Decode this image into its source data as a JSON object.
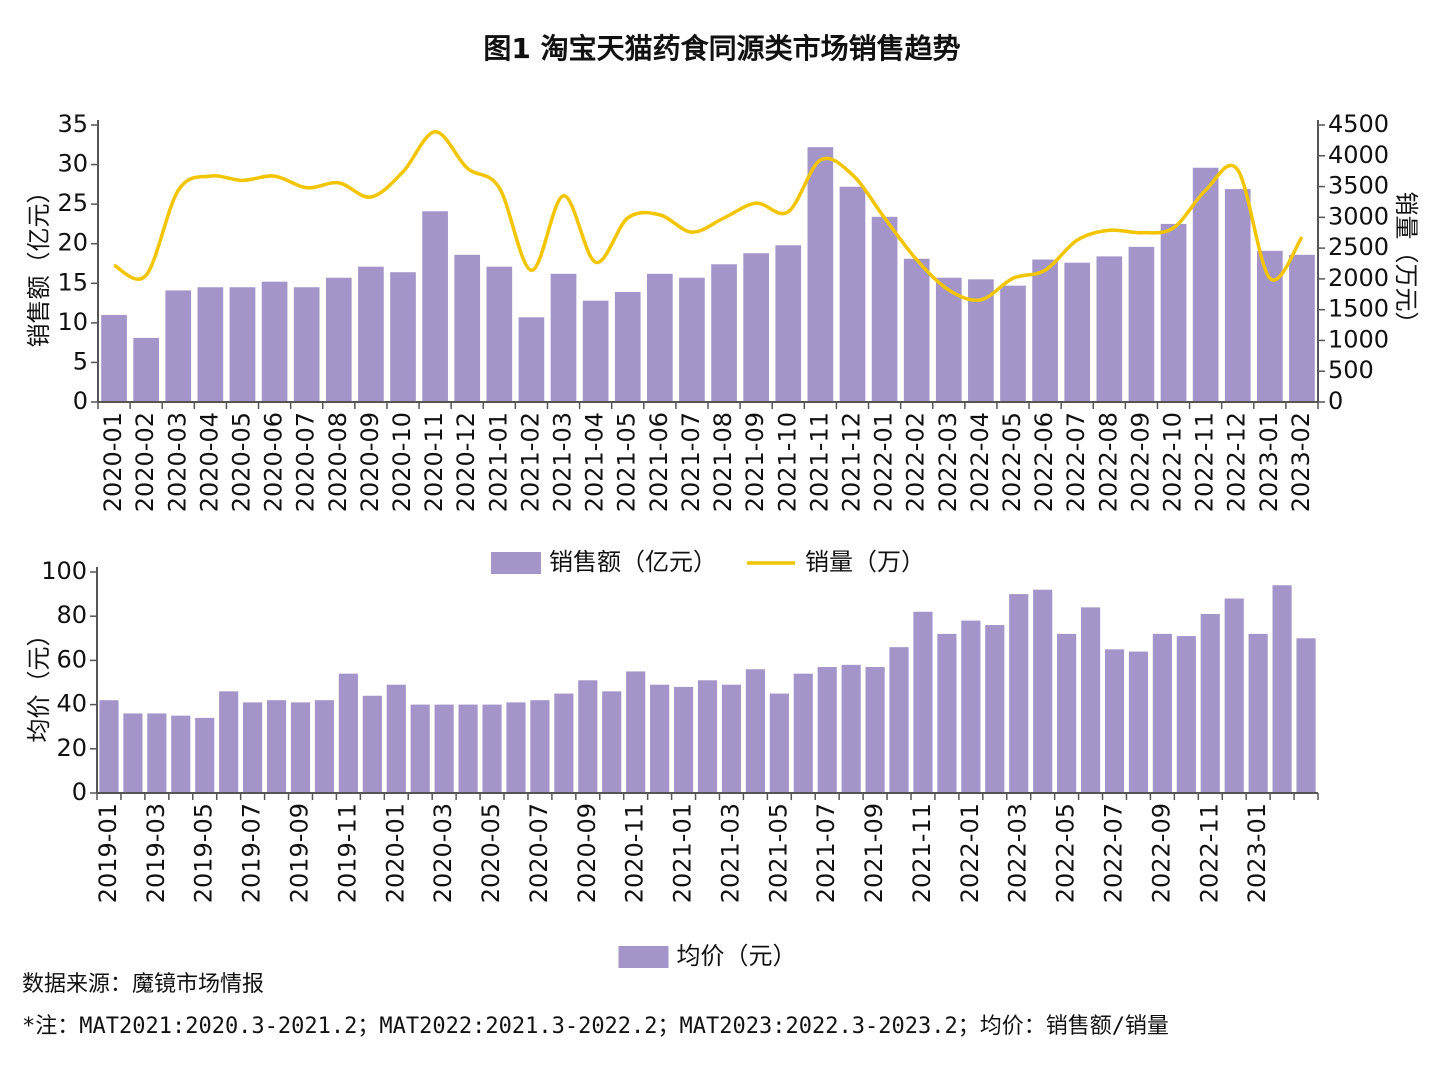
{
  "chart_data": [
    {
      "type": "bar",
      "title": "图1 淘宝天猫药食同源类市场销售趋势",
      "y_label": "销售额（亿元）",
      "y2_label": "销量（万元）",
      "categories": [
        "2020-01",
        "2020-02",
        "2020-03",
        "2020-04",
        "2020-05",
        "2020-06",
        "2020-07",
        "2020-08",
        "2020-09",
        "2020-10",
        "2020-11",
        "2020-12",
        "2021-01",
        "2021-02",
        "2021-03",
        "2021-04",
        "2021-05",
        "2021-06",
        "2021-07",
        "2021-08",
        "2021-09",
        "2021-10",
        "2021-11",
        "2021-12",
        "2022-01",
        "2022-02",
        "2022-03",
        "2022-04",
        "2022-05",
        "2022-06",
        "2022-07",
        "2022-08",
        "2022-09",
        "2022-10",
        "2022-11",
        "2022-12",
        "2023-01",
        "2023-02"
      ],
      "series": [
        {
          "name": "销售额（亿元）",
          "type": "bar",
          "color": "#a395c9",
          "values": [
            11,
            8.1,
            14.1,
            14.5,
            14.5,
            15.2,
            14.5,
            15.7,
            17.1,
            16.4,
            24.1,
            18.6,
            17.1,
            10.7,
            16.2,
            12.8,
            13.9,
            16.2,
            15.7,
            17.4,
            18.8,
            19.8,
            32.2,
            27.2,
            23.4,
            18.1,
            15.7,
            15.5,
            14.7,
            18.0,
            17.6,
            18.4,
            19.6,
            22.5,
            29.6,
            26.9,
            19.1,
            18.6
          ]
        },
        {
          "name": "销量（万）",
          "type": "line",
          "axis": "y2",
          "color": "#f2c500",
          "values": [
            2220,
            2060,
            3440,
            3670,
            3600,
            3670,
            3480,
            3560,
            3330,
            3740,
            4390,
            3800,
            3480,
            2140,
            3350,
            2270,
            2990,
            3040,
            2760,
            2990,
            3230,
            3090,
            3930,
            3690,
            2990,
            2310,
            1820,
            1660,
            2010,
            2140,
            2630,
            2790,
            2750,
            2830,
            3440,
            3770,
            2010,
            2680
          ]
        }
      ],
      "ylim": [
        0,
        35
      ],
      "yticks": [
        0,
        5,
        10,
        15,
        20,
        25,
        30,
        35
      ],
      "y2lim": [
        0,
        4500
      ],
      "y2ticks": [
        0,
        500,
        1000,
        1500,
        2000,
        2500,
        3000,
        3500,
        4000,
        4500
      ],
      "legend": "bottom"
    },
    {
      "type": "bar",
      "y_label": "均价（元）",
      "categories": [
        "2019-01",
        null,
        "2019-03",
        null,
        "2019-05",
        null,
        "2019-07",
        null,
        "2019-09",
        null,
        "2019-11",
        null,
        "2020-01",
        null,
        "2020-03",
        null,
        "2020-05",
        null,
        "2020-07",
        null,
        "2020-09",
        null,
        "2020-11",
        null,
        "2021-01",
        null,
        "2021-03",
        null,
        "2021-05",
        null,
        "2021-07",
        null,
        "2021-09",
        null,
        "2021-11",
        null,
        "2022-01",
        null,
        "2022-03",
        null,
        "2022-05",
        null,
        "2022-07",
        null,
        "2022-09",
        null,
        "2022-11",
        null,
        "2023-01",
        null,
        null
      ],
      "series": [
        {
          "name": "均价（元）",
          "type": "bar",
          "color": "#a395c9",
          "values": [
            42,
            36,
            36,
            35,
            34,
            46,
            41,
            42,
            41,
            42,
            54,
            44,
            49,
            40,
            40,
            40,
            40,
            41,
            42,
            45,
            51,
            46,
            55,
            49,
            48,
            51,
            49,
            56,
            45,
            54,
            57,
            58,
            57,
            66,
            82,
            72,
            78,
            76,
            90,
            92,
            72,
            84,
            65,
            64,
            72,
            71,
            81,
            88,
            72,
            94,
            70
          ]
        }
      ],
      "ylim": [
        0,
        100
      ],
      "yticks": [
        0,
        20,
        40,
        60,
        80,
        100
      ],
      "legend": "bottom"
    }
  ],
  "source": "数据来源：魔镜市场情报",
  "note": "*注：MAT2021:2020.3-2021.2；MAT2022:2021.3-2022.2；MAT2023:2022.3-2023.2；均价：销售额/销量"
}
